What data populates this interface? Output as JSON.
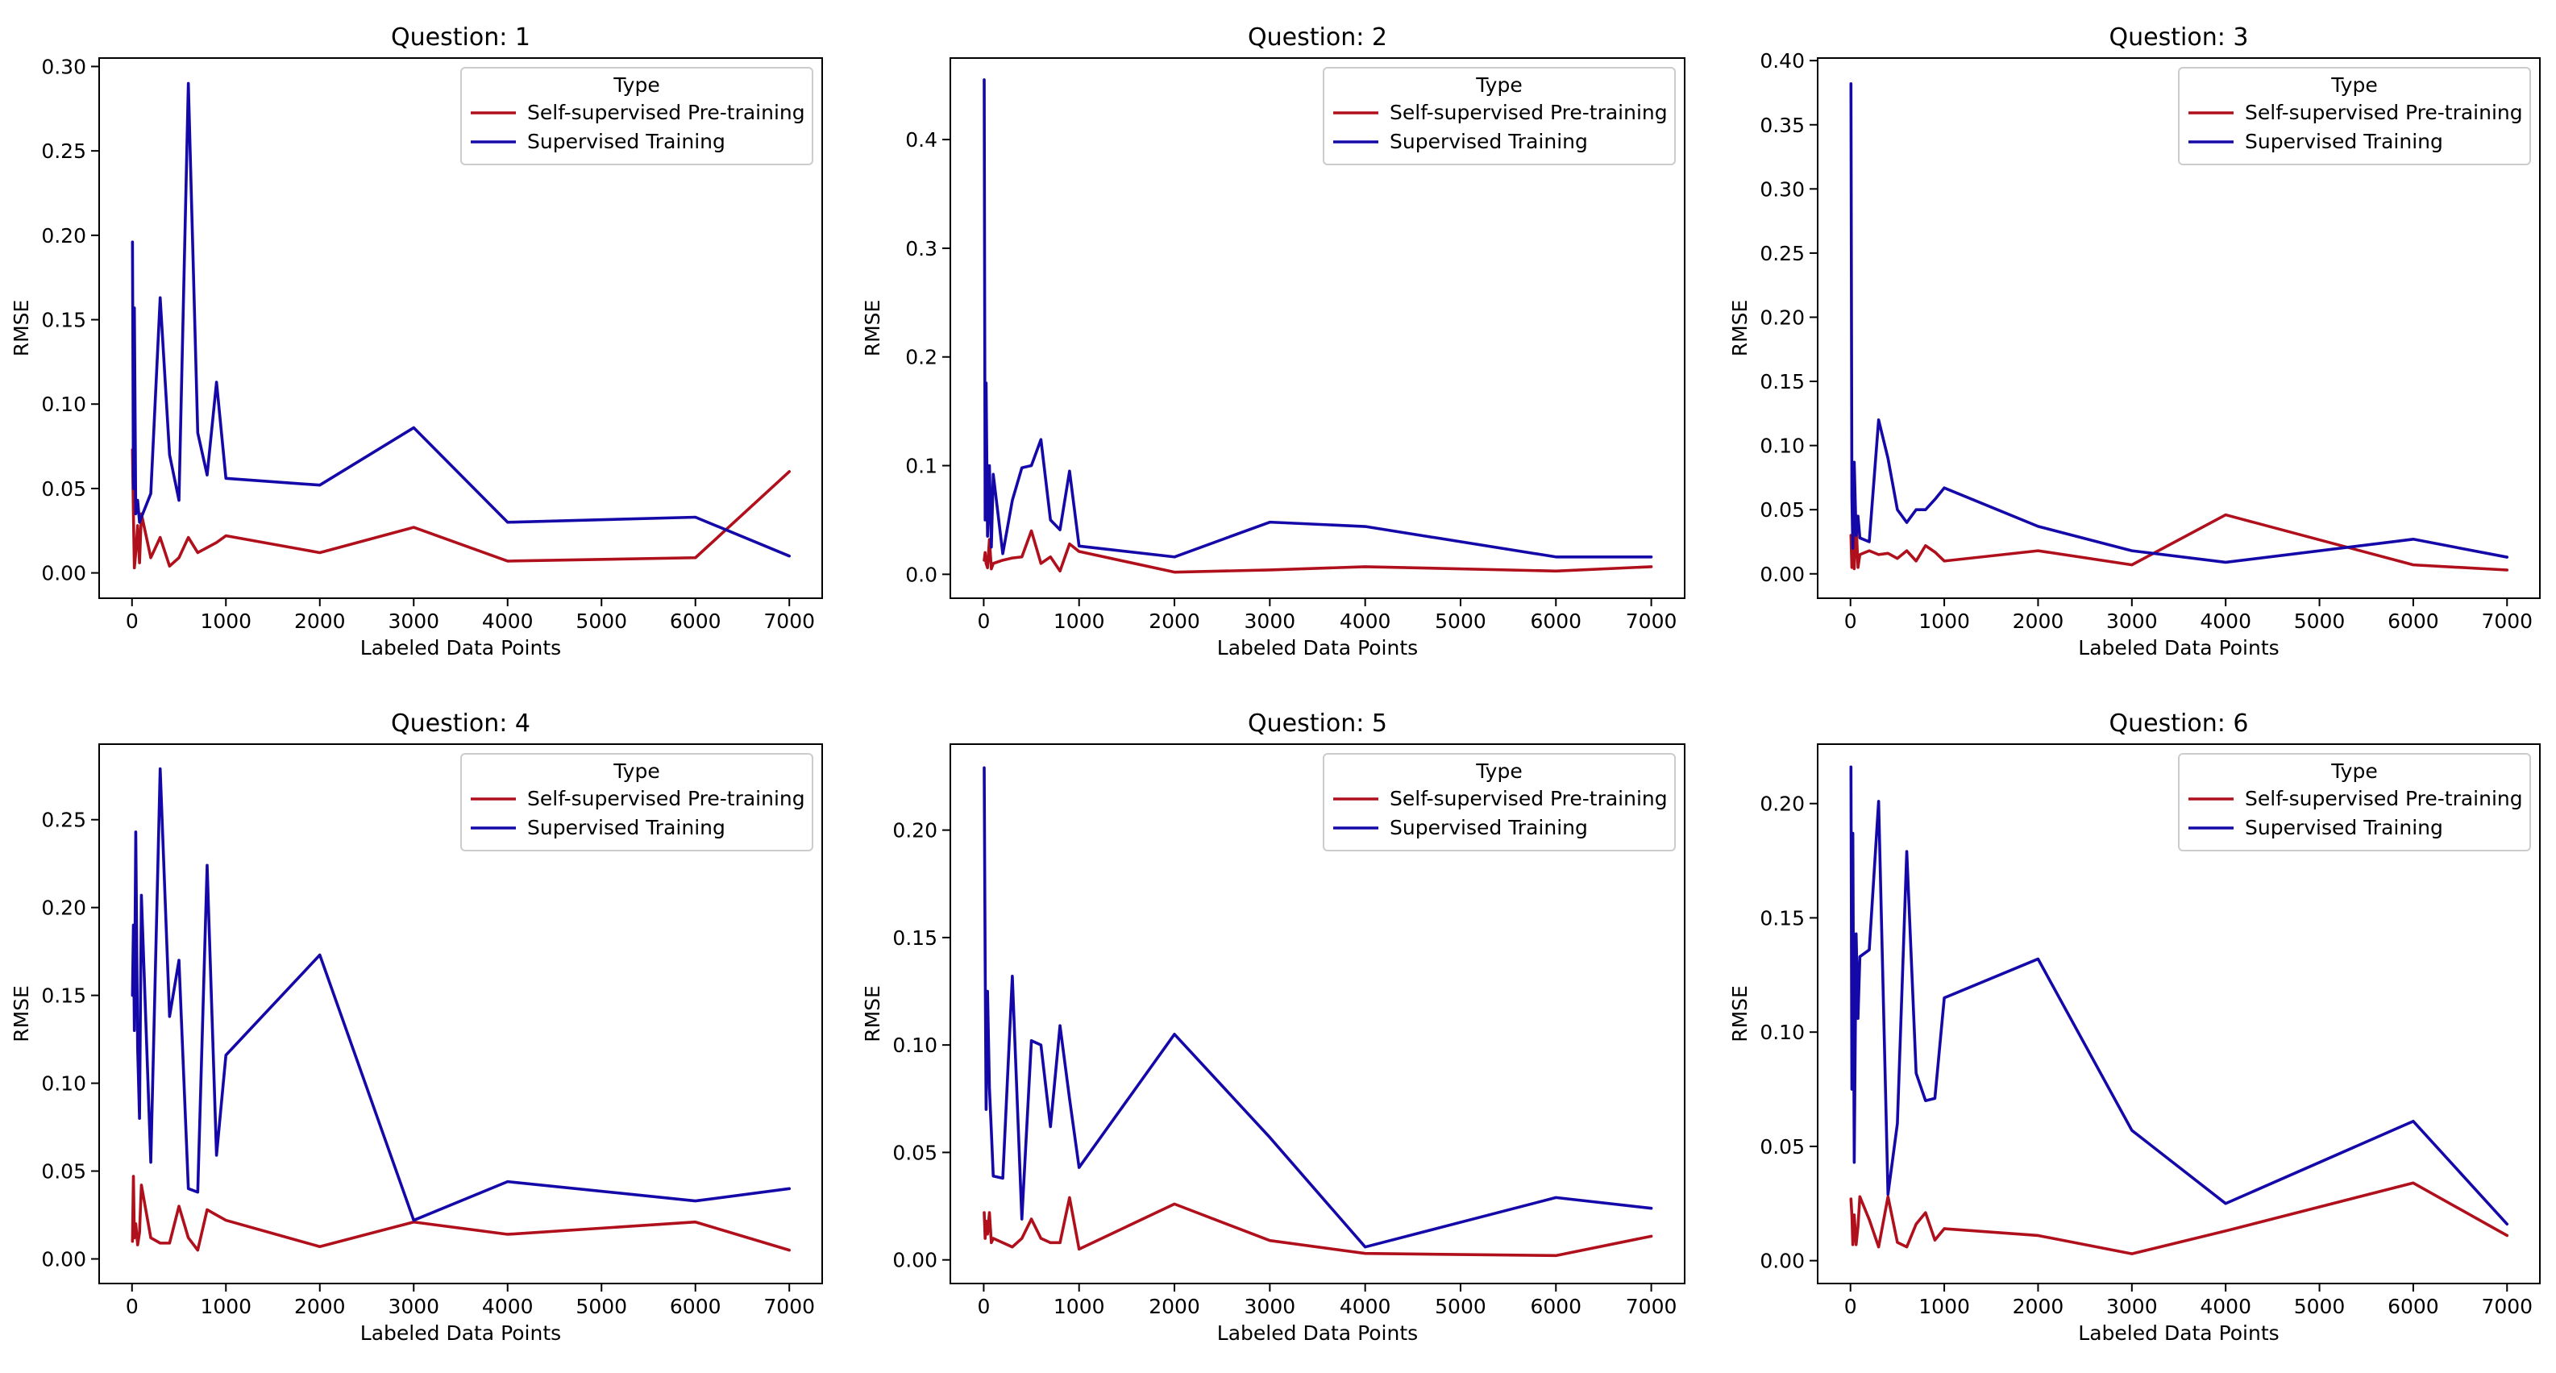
{
  "figure": {
    "colors": {
      "self_supervised": "#b00f1c",
      "supervised": "#1408a8",
      "axis": "#000000",
      "legend_frame": "#cccccc"
    }
  },
  "chart_data": [
    {
      "type": "line",
      "title": "Question: 1",
      "xlabel": "Labeled Data Points",
      "ylabel": "RMSE",
      "xlim": [
        -350,
        7350
      ],
      "ylim": [
        -0.015,
        0.305
      ],
      "xticks": [
        0,
        1000,
        2000,
        3000,
        4000,
        5000,
        6000,
        7000
      ],
      "xtick_labels": [
        "0",
        "1000",
        "2000",
        "3000",
        "4000",
        "5000",
        "6000",
        "7000"
      ],
      "yticks": [
        0.0,
        0.05,
        0.1,
        0.15,
        0.2,
        0.25,
        0.3
      ],
      "ytick_labels": [
        "0.00",
        "0.05",
        "0.10",
        "0.15",
        "0.20",
        "0.25",
        "0.30"
      ],
      "grid": false,
      "legend": {
        "title": "Type",
        "location": "upper right"
      },
      "series": [
        {
          "name": "Self-supervised Pre-training",
          "color": "self_supervised",
          "x": [
            5,
            15,
            25,
            40,
            60,
            80,
            100,
            200,
            300,
            400,
            500,
            600,
            700,
            800,
            900,
            1000,
            2000,
            3000,
            4000,
            6000,
            7000
          ],
          "y": [
            0.073,
            0.035,
            0.003,
            0.012,
            0.028,
            0.006,
            0.035,
            0.009,
            0.021,
            0.004,
            0.009,
            0.021,
            0.012,
            0.015,
            0.018,
            0.022,
            0.012,
            0.027,
            0.007,
            0.009,
            0.06
          ]
        },
        {
          "name": "Supervised Training",
          "color": "supervised",
          "x": [
            5,
            15,
            25,
            40,
            60,
            80,
            100,
            200,
            300,
            400,
            500,
            600,
            700,
            800,
            900,
            1000,
            2000,
            3000,
            4000,
            6000,
            7000
          ],
          "y": [
            0.196,
            0.05,
            0.157,
            0.035,
            0.043,
            0.03,
            0.033,
            0.047,
            0.163,
            0.07,
            0.043,
            0.29,
            0.083,
            0.058,
            0.113,
            0.056,
            0.052,
            0.086,
            0.03,
            0.033,
            0.01
          ]
        }
      ]
    },
    {
      "type": "line",
      "title": "Question: 2",
      "xlabel": "Labeled Data Points",
      "ylabel": "RMSE",
      "xlim": [
        -350,
        7350
      ],
      "ylim": [
        -0.022,
        0.475
      ],
      "xticks": [
        0,
        1000,
        2000,
        3000,
        4000,
        5000,
        6000,
        7000
      ],
      "xtick_labels": [
        "0",
        "1000",
        "2000",
        "3000",
        "4000",
        "5000",
        "6000",
        "7000"
      ],
      "yticks": [
        0.0,
        0.1,
        0.2,
        0.3,
        0.4
      ],
      "ytick_labels": [
        "0.0",
        "0.1",
        "0.2",
        "0.3",
        "0.4"
      ],
      "grid": false,
      "legend": {
        "title": "Type",
        "location": "upper right"
      },
      "series": [
        {
          "name": "Self-supervised Pre-training",
          "color": "self_supervised",
          "x": [
            5,
            15,
            25,
            40,
            60,
            80,
            100,
            200,
            300,
            400,
            500,
            600,
            700,
            800,
            900,
            1000,
            2000,
            3000,
            4000,
            6000,
            7000
          ],
          "y": [
            0.013,
            0.02,
            0.01,
            0.006,
            0.032,
            0.005,
            0.01,
            0.013,
            0.015,
            0.016,
            0.04,
            0.01,
            0.016,
            0.003,
            0.028,
            0.021,
            0.002,
            0.004,
            0.007,
            0.003,
            0.007
          ]
        },
        {
          "name": "Supervised Training",
          "color": "supervised",
          "x": [
            5,
            15,
            25,
            40,
            60,
            80,
            100,
            200,
            300,
            400,
            500,
            600,
            700,
            800,
            900,
            1000,
            2000,
            3000,
            4000,
            6000,
            7000
          ],
          "y": [
            0.455,
            0.05,
            0.176,
            0.035,
            0.1,
            0.025,
            0.092,
            0.019,
            0.068,
            0.098,
            0.1,
            0.124,
            0.05,
            0.041,
            0.095,
            0.026,
            0.016,
            0.048,
            0.044,
            0.016,
            0.016
          ]
        }
      ]
    },
    {
      "type": "line",
      "title": "Question: 3",
      "xlabel": "Labeled Data Points",
      "ylabel": "RMSE",
      "xlim": [
        -350,
        7350
      ],
      "ylim": [
        -0.019,
        0.402
      ],
      "xticks": [
        0,
        1000,
        2000,
        3000,
        4000,
        5000,
        6000,
        7000
      ],
      "xtick_labels": [
        "0",
        "1000",
        "2000",
        "3000",
        "4000",
        "5000",
        "6000",
        "7000"
      ],
      "yticks": [
        0.0,
        0.05,
        0.1,
        0.15,
        0.2,
        0.25,
        0.3,
        0.35,
        0.4
      ],
      "ytick_labels": [
        "0.00",
        "0.05",
        "0.10",
        "0.15",
        "0.20",
        "0.25",
        "0.30",
        "0.35",
        "0.40"
      ],
      "grid": false,
      "legend": {
        "title": "Type",
        "location": "upper right"
      },
      "series": [
        {
          "name": "Self-supervised Pre-training",
          "color": "self_supervised",
          "x": [
            5,
            15,
            25,
            40,
            60,
            80,
            100,
            200,
            300,
            400,
            500,
            600,
            700,
            800,
            900,
            1000,
            2000,
            3000,
            4000,
            6000,
            7000
          ],
          "y": [
            0.03,
            0.005,
            0.025,
            0.004,
            0.04,
            0.005,
            0.015,
            0.018,
            0.015,
            0.016,
            0.012,
            0.018,
            0.01,
            0.022,
            0.017,
            0.01,
            0.018,
            0.007,
            0.046,
            0.007,
            0.003
          ]
        },
        {
          "name": "Supervised Training",
          "color": "supervised",
          "x": [
            5,
            15,
            25,
            40,
            60,
            80,
            100,
            200,
            300,
            400,
            500,
            600,
            700,
            800,
            900,
            1000,
            2000,
            3000,
            4000,
            6000,
            7000
          ],
          "y": [
            0.382,
            0.06,
            0.02,
            0.087,
            0.03,
            0.045,
            0.028,
            0.025,
            0.12,
            0.09,
            0.05,
            0.04,
            0.05,
            0.05,
            0.058,
            0.067,
            0.037,
            0.018,
            0.009,
            0.027,
            0.013
          ]
        }
      ]
    },
    {
      "type": "line",
      "title": "Question: 4",
      "xlabel": "Labeled Data Points",
      "ylabel": "RMSE",
      "xlim": [
        -350,
        7350
      ],
      "ylim": [
        -0.014,
        0.293
      ],
      "xticks": [
        0,
        1000,
        2000,
        3000,
        4000,
        5000,
        6000,
        7000
      ],
      "xtick_labels": [
        "0",
        "1000",
        "2000",
        "3000",
        "4000",
        "5000",
        "6000",
        "7000"
      ],
      "yticks": [
        0.0,
        0.05,
        0.1,
        0.15,
        0.2,
        0.25
      ],
      "ytick_labels": [
        "0.00",
        "0.05",
        "0.10",
        "0.15",
        "0.20",
        "0.25"
      ],
      "grid": false,
      "legend": {
        "title": "Type",
        "location": "upper right"
      },
      "series": [
        {
          "name": "Self-supervised Pre-training",
          "color": "self_supervised",
          "x": [
            5,
            15,
            25,
            40,
            60,
            80,
            100,
            200,
            300,
            400,
            500,
            600,
            700,
            800,
            900,
            1000,
            2000,
            3000,
            4000,
            6000,
            7000
          ],
          "y": [
            0.01,
            0.047,
            0.012,
            0.02,
            0.008,
            0.015,
            0.042,
            0.012,
            0.009,
            0.009,
            0.03,
            0.012,
            0.005,
            0.028,
            0.025,
            0.022,
            0.007,
            0.021,
            0.014,
            0.021,
            0.005
          ]
        },
        {
          "name": "Supervised Training",
          "color": "supervised",
          "x": [
            5,
            15,
            25,
            40,
            60,
            80,
            100,
            200,
            300,
            400,
            500,
            600,
            700,
            800,
            900,
            1000,
            2000,
            3000,
            4000,
            6000,
            7000
          ],
          "y": [
            0.15,
            0.19,
            0.13,
            0.243,
            0.12,
            0.08,
            0.207,
            0.055,
            0.279,
            0.138,
            0.17,
            0.04,
            0.038,
            0.224,
            0.059,
            0.116,
            0.173,
            0.022,
            0.044,
            0.033,
            0.04
          ]
        }
      ]
    },
    {
      "type": "line",
      "title": "Question: 5",
      "xlabel": "Labeled Data Points",
      "ylabel": "RMSE",
      "xlim": [
        -350,
        7350
      ],
      "ylim": [
        -0.011,
        0.24
      ],
      "xticks": [
        0,
        1000,
        2000,
        3000,
        4000,
        5000,
        6000,
        7000
      ],
      "xtick_labels": [
        "0",
        "1000",
        "2000",
        "3000",
        "4000",
        "5000",
        "6000",
        "7000"
      ],
      "yticks": [
        0.0,
        0.05,
        0.1,
        0.15,
        0.2
      ],
      "ytick_labels": [
        "0.00",
        "0.05",
        "0.10",
        "0.15",
        "0.20"
      ],
      "grid": false,
      "legend": {
        "title": "Type",
        "location": "upper right"
      },
      "series": [
        {
          "name": "Self-supervised Pre-training",
          "color": "self_supervised",
          "x": [
            5,
            15,
            25,
            40,
            60,
            80,
            100,
            200,
            300,
            400,
            500,
            600,
            700,
            800,
            900,
            1000,
            2000,
            3000,
            4000,
            6000,
            7000
          ],
          "y": [
            0.022,
            0.01,
            0.018,
            0.012,
            0.022,
            0.008,
            0.01,
            0.008,
            0.006,
            0.01,
            0.019,
            0.01,
            0.008,
            0.008,
            0.029,
            0.005,
            0.026,
            0.009,
            0.003,
            0.002,
            0.011
          ]
        },
        {
          "name": "Supervised Training",
          "color": "supervised",
          "x": [
            5,
            15,
            25,
            40,
            60,
            80,
            100,
            200,
            300,
            400,
            500,
            600,
            700,
            800,
            900,
            1000,
            2000,
            3000,
            4000,
            6000,
            7000
          ],
          "y": [
            0.229,
            0.14,
            0.07,
            0.125,
            0.08,
            0.06,
            0.039,
            0.038,
            0.132,
            0.019,
            0.102,
            0.1,
            0.062,
            0.109,
            0.075,
            0.043,
            0.105,
            0.057,
            0.006,
            0.029,
            0.024
          ]
        }
      ]
    },
    {
      "type": "line",
      "title": "Question: 6",
      "xlabel": "Labeled Data Points",
      "ylabel": "RMSE",
      "xlim": [
        -350,
        7350
      ],
      "ylim": [
        -0.01,
        0.226
      ],
      "xticks": [
        0,
        1000,
        2000,
        3000,
        4000,
        5000,
        6000,
        7000
      ],
      "xtick_labels": [
        "0",
        "1000",
        "2000",
        "3000",
        "4000",
        "5000",
        "6000",
        "7000"
      ],
      "yticks": [
        0.0,
        0.05,
        0.1,
        0.15,
        0.2
      ],
      "ytick_labels": [
        "0.00",
        "0.05",
        "0.10",
        "0.15",
        "0.20"
      ],
      "grid": false,
      "legend": {
        "title": "Type",
        "location": "upper right"
      },
      "series": [
        {
          "name": "Self-supervised Pre-training",
          "color": "self_supervised",
          "x": [
            5,
            15,
            25,
            40,
            60,
            80,
            100,
            200,
            300,
            400,
            500,
            600,
            700,
            800,
            900,
            1000,
            2000,
            3000,
            4000,
            6000,
            7000
          ],
          "y": [
            0.027,
            0.02,
            0.007,
            0.02,
            0.007,
            0.015,
            0.028,
            0.018,
            0.006,
            0.028,
            0.008,
            0.006,
            0.016,
            0.021,
            0.009,
            0.014,
            0.011,
            0.003,
            0.013,
            0.034,
            0.011
          ]
        },
        {
          "name": "Supervised Training",
          "color": "supervised",
          "x": [
            5,
            15,
            25,
            40,
            60,
            80,
            100,
            200,
            300,
            400,
            500,
            600,
            700,
            800,
            900,
            1000,
            2000,
            3000,
            4000,
            6000,
            7000
          ],
          "y": [
            0.216,
            0.075,
            0.187,
            0.043,
            0.143,
            0.106,
            0.133,
            0.136,
            0.201,
            0.029,
            0.06,
            0.179,
            0.082,
            0.07,
            0.071,
            0.115,
            0.132,
            0.057,
            0.025,
            0.061,
            0.016
          ]
        }
      ]
    }
  ]
}
